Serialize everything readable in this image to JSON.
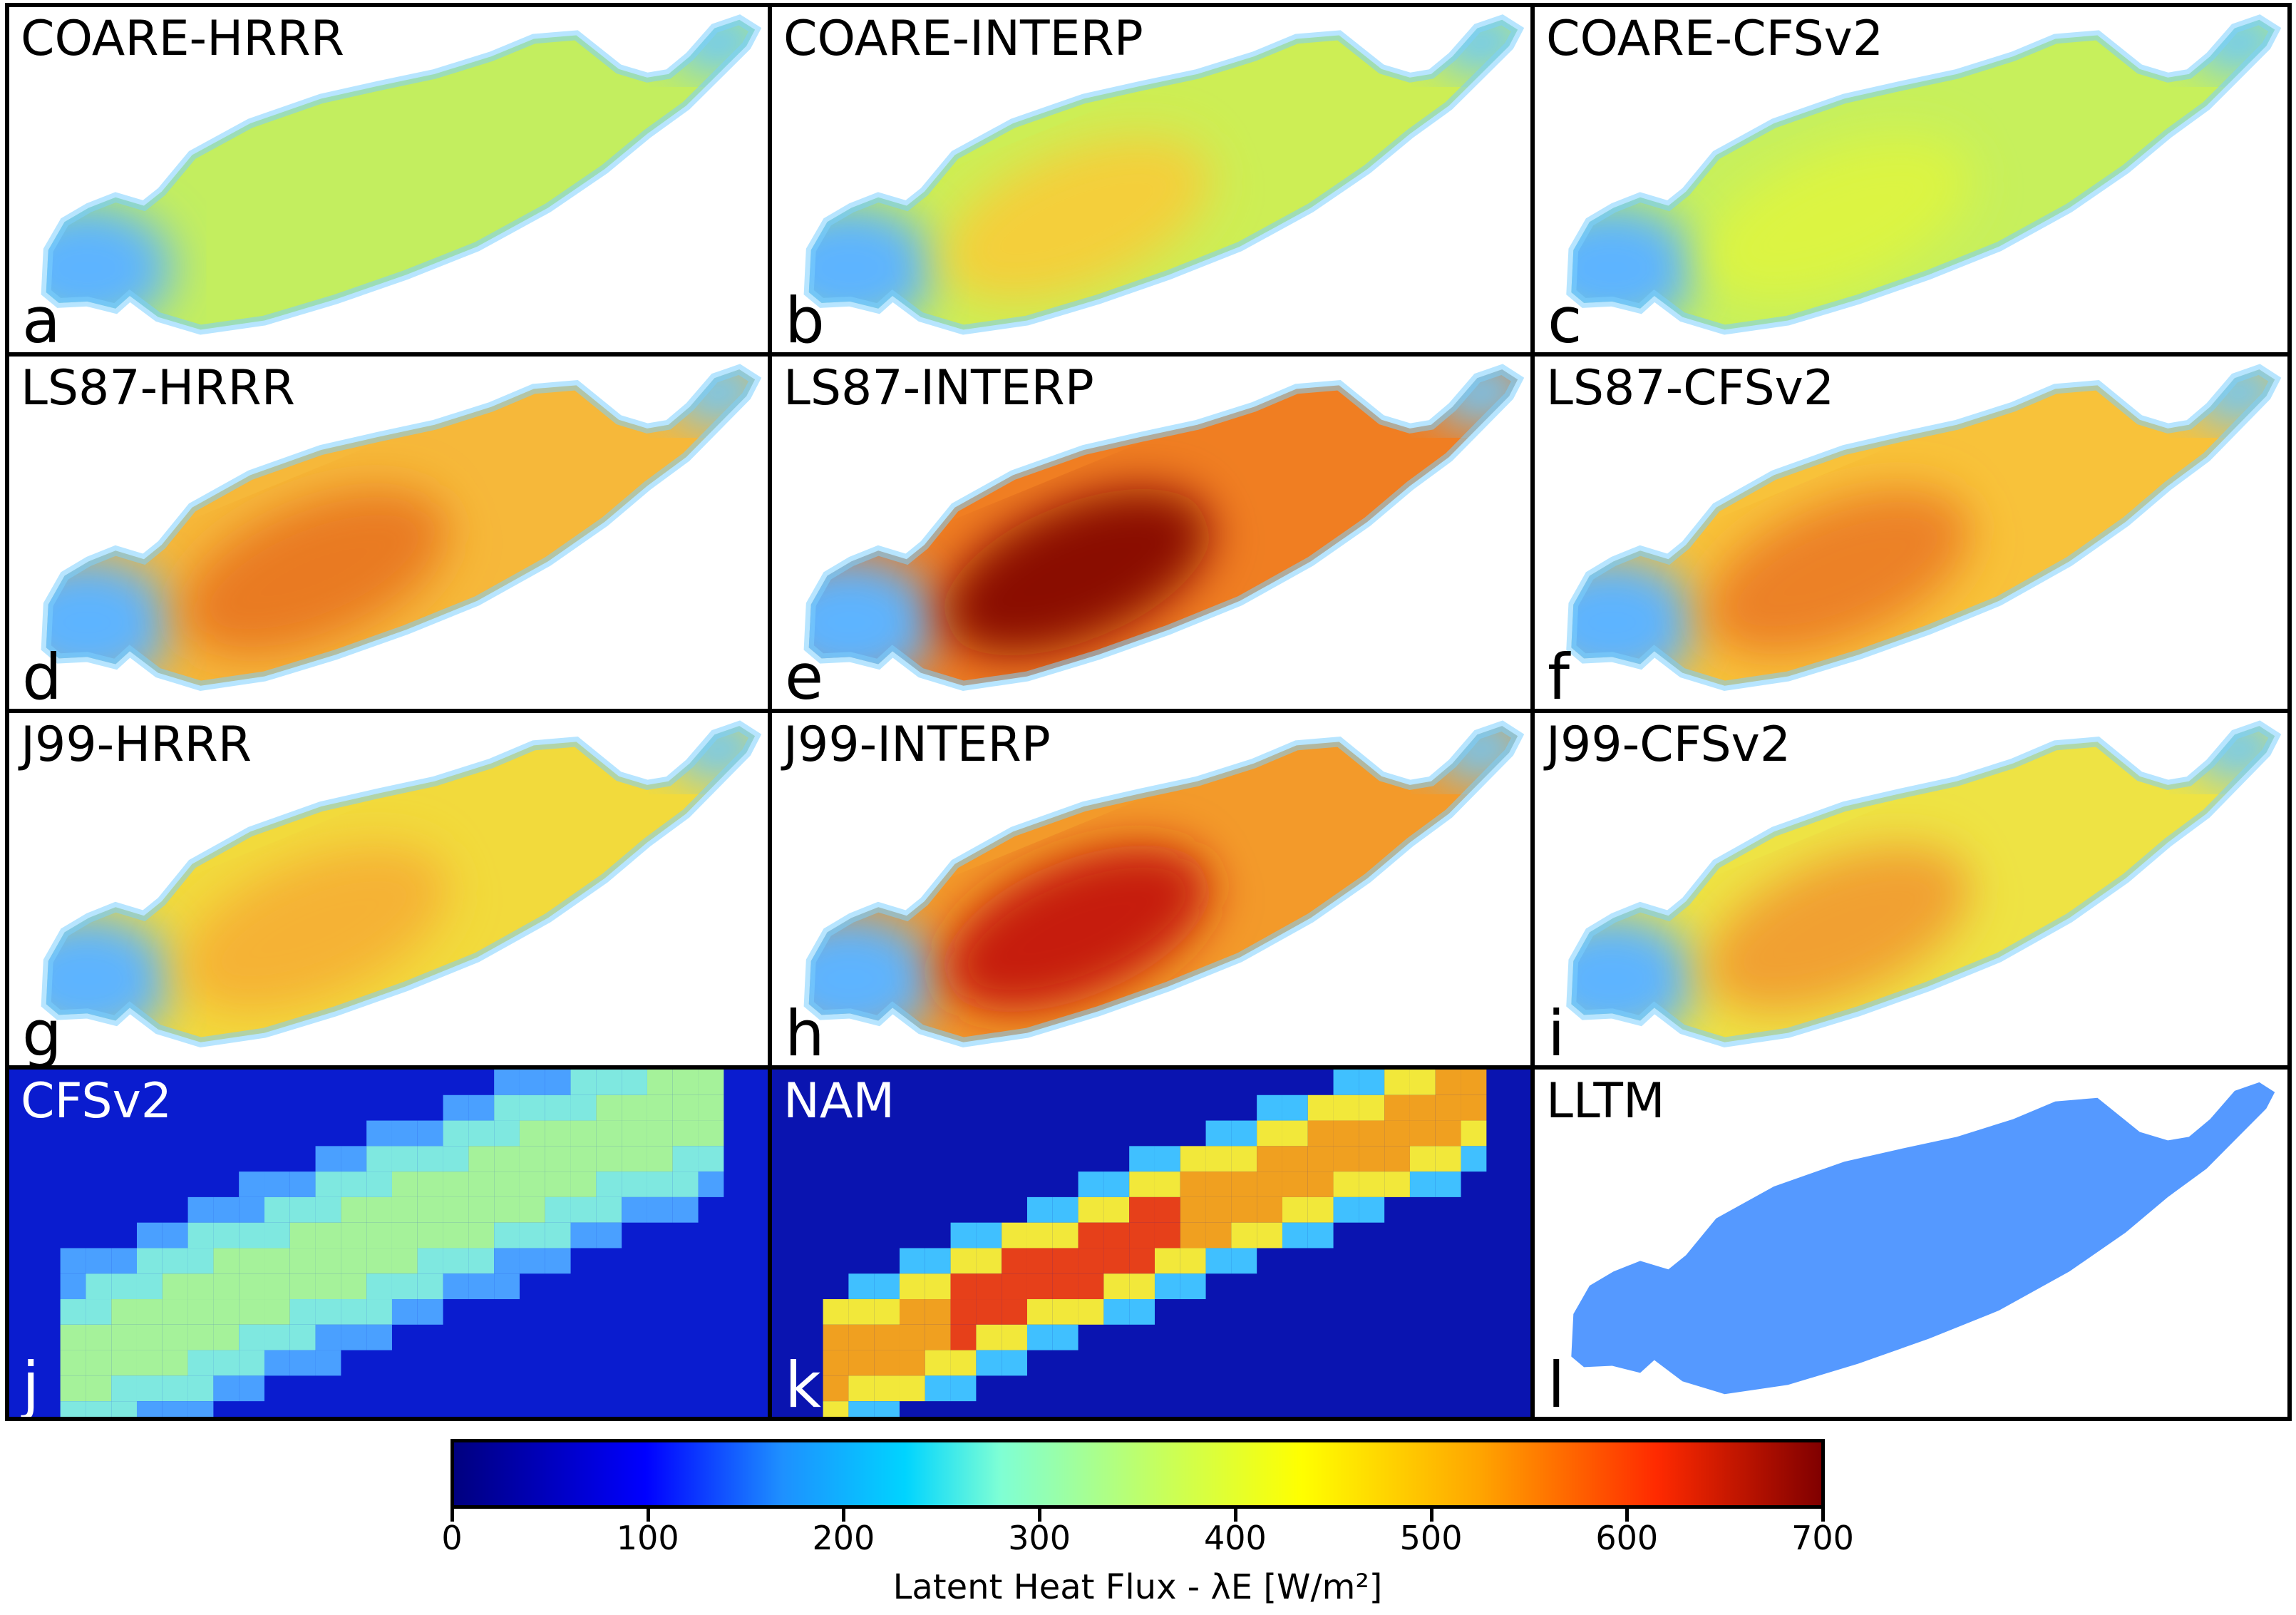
{
  "panels": [
    {
      "title": "COARE-HRRR",
      "letter": "a",
      "kind": "lake",
      "fill": "#c3ee5f",
      "core": null
    },
    {
      "title": "COARE-INTERP",
      "letter": "b",
      "kind": "lake",
      "fill": "#cdee55",
      "core": "#f4cf3a"
    },
    {
      "title": "COARE-CFSv2",
      "letter": "c",
      "kind": "lake",
      "fill": "#c7f05c",
      "core": "#dcf442"
    },
    {
      "title": "LS87-HRRR",
      "letter": "d",
      "kind": "lake",
      "fill": "#f6b83a",
      "core": "#e97a22"
    },
    {
      "title": "LS87-INTERP",
      "letter": "e",
      "kind": "lake",
      "fill": "#f07e22",
      "core": "#8a0a05"
    },
    {
      "title": "LS87-CFSv2",
      "letter": "f",
      "kind": "lake",
      "fill": "#f8c23a",
      "core": "#ec8127"
    },
    {
      "title": "J99-HRRR",
      "letter": "g",
      "kind": "lake",
      "fill": "#f2da3c",
      "core": "#f5b236"
    },
    {
      "title": "J99-INTERP",
      "letter": "h",
      "kind": "lake",
      "fill": "#f39a2a",
      "core": "#c61e0e"
    },
    {
      "title": "J99-CFSv2",
      "letter": "i",
      "kind": "lake",
      "fill": "#eee344",
      "core": "#f1a030"
    },
    {
      "title": "CFSv2",
      "letter": "j",
      "kind": "grid-cfs",
      "fill": "#0a1ccf",
      "core": "#9af0a0"
    },
    {
      "title": "NAM",
      "letter": "k",
      "kind": "grid-nam",
      "fill": "#0a14b0",
      "core": "#e0501a"
    },
    {
      "title": "LLTM",
      "letter": "l",
      "kind": "flat",
      "fill": "#5599ff",
      "core": null
    }
  ],
  "colorbar": {
    "label": "Latent Heat Flux - λE [W/m²]",
    "min": 0,
    "max": 700,
    "ticks": [
      "0",
      "100",
      "200",
      "300",
      "400",
      "500",
      "600",
      "700"
    ],
    "colormap": "jet"
  }
}
